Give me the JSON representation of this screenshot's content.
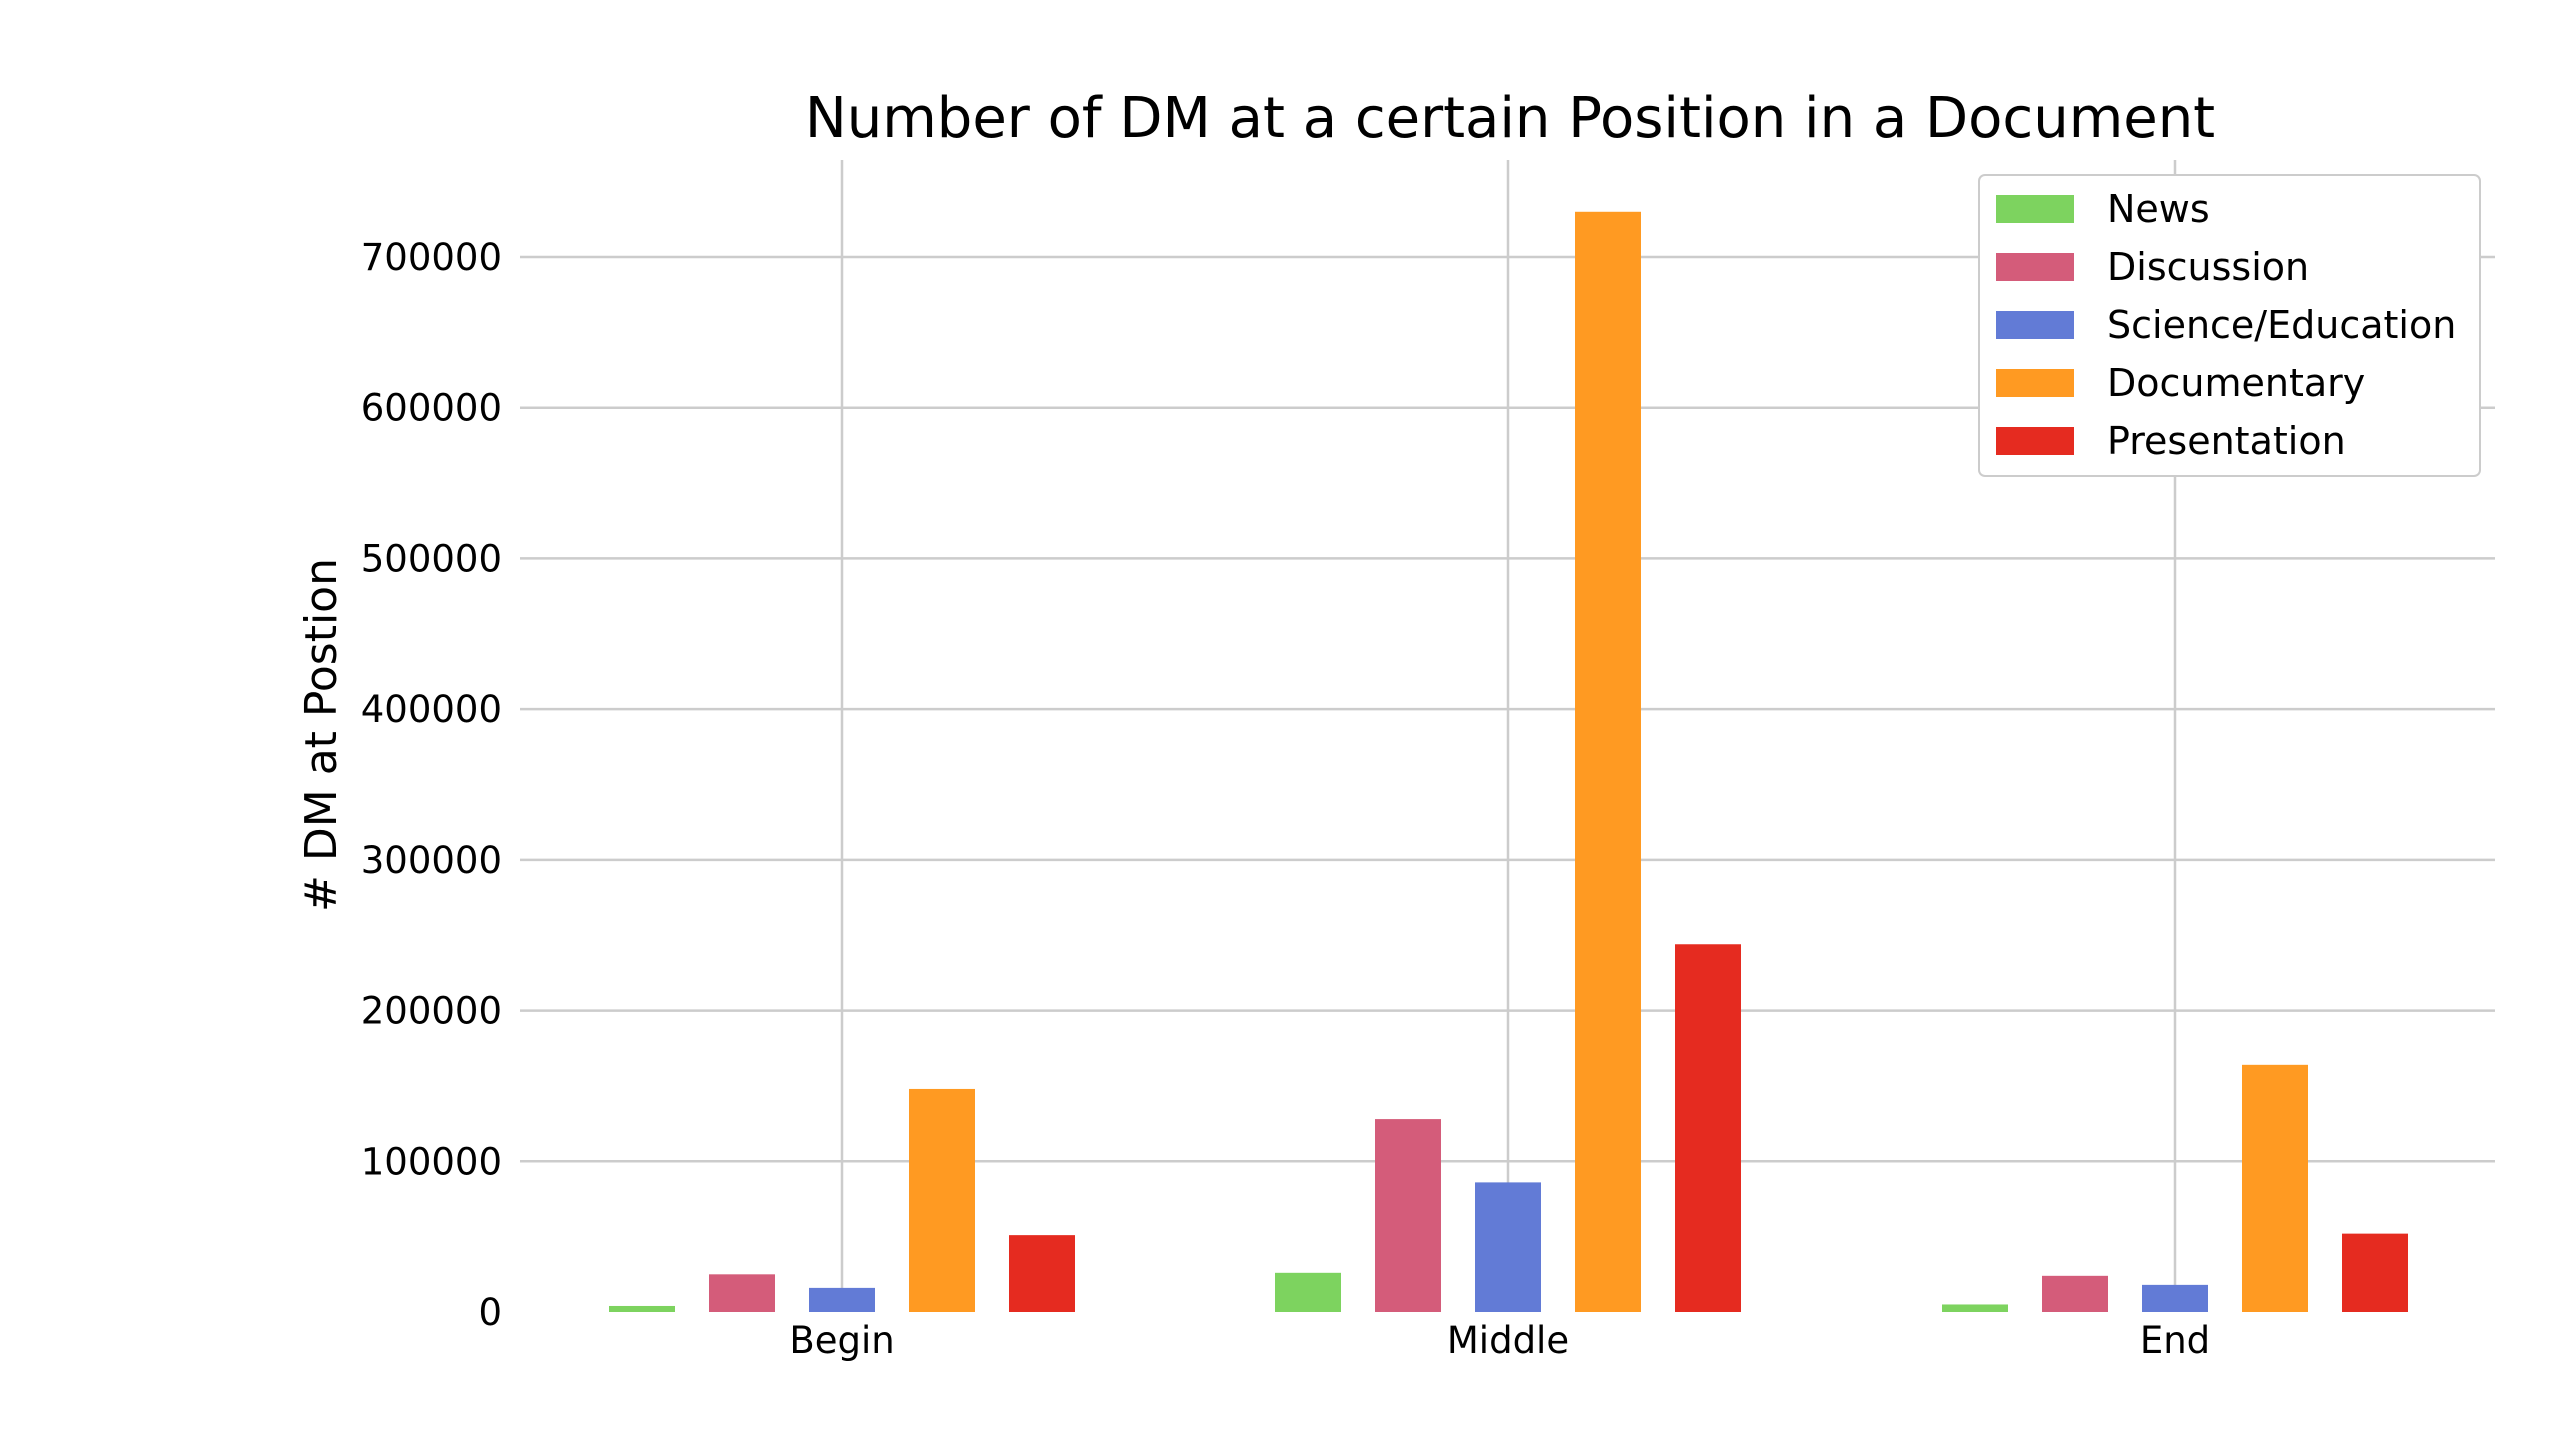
{
  "chart_data": {
    "type": "bar",
    "title": "Number of DM at a certain Position in a Document",
    "xlabel": "",
    "ylabel": "# DM at Postion",
    "categories": [
      "Begin",
      "Middle",
      "End"
    ],
    "ylim": [
      0,
      770000
    ],
    "yticks": [
      0,
      100000,
      200000,
      300000,
      400000,
      500000,
      600000,
      700000
    ],
    "ytick_labels": [
      "0",
      "100000",
      "200000",
      "300000",
      "400000",
      "500000",
      "600000",
      "700000"
    ],
    "grid": true,
    "legend_position": "top-right",
    "series": [
      {
        "name": "News",
        "color": "#7dd35f",
        "values": [
          4000,
          26000,
          5000
        ]
      },
      {
        "name": "Discussion",
        "color": "#d45c7a",
        "values": [
          25000,
          128000,
          24000
        ]
      },
      {
        "name": "Science/Education",
        "color": "#627bd6",
        "values": [
          16000,
          86000,
          18000
        ]
      },
      {
        "name": "Documentary",
        "color": "#ff9a22",
        "values": [
          148000,
          730000,
          164000
        ]
      },
      {
        "name": "Presentation",
        "color": "#e52b20",
        "values": [
          51000,
          244000,
          52000
        ]
      }
    ]
  }
}
